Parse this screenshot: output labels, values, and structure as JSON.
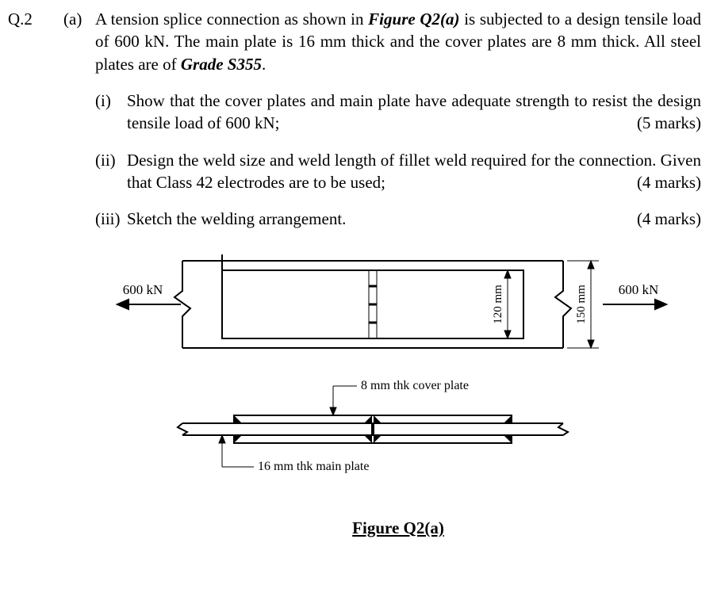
{
  "question_number": "Q.2",
  "part_label": "(a)",
  "intro_html": "A tension splice connection as shown in <span class=\"bi\">Figure Q2(a)</span> is subjected to a design tensile load of 600 kN.  The main plate is 16 mm thick and the cover plates are 8 mm thick.  All steel plates are of <span class=\"bi\">Grade S355</span>.",
  "subparts": [
    {
      "num": "(i)",
      "text": "Show that the cover plates and main plate have adequate strength to resist the design tensile load of 600 kN;",
      "marks": "(5 marks)"
    },
    {
      "num": "(ii)",
      "text": "Design the weld size and weld length of fillet weld required for the connection.  Given that Class 42 electrodes are to be used;",
      "marks": "(4 marks)"
    },
    {
      "num": "(iii)",
      "text": "Sketch the welding arrangement.",
      "marks": "(4 marks)"
    }
  ],
  "figure": {
    "caption": "Figure Q2(a)",
    "load_label": "600 kN",
    "dim_120": "120 mm",
    "dim_150": "150 mm",
    "cover_plate_label": "8 mm thk cover plate",
    "main_plate_label": "16 mm thk main plate",
    "colors": {
      "stroke": "#000000",
      "weld_fill": "#000000",
      "bg": "#ffffff"
    },
    "stroke_width_main": 2,
    "stroke_width_thin": 1
  }
}
